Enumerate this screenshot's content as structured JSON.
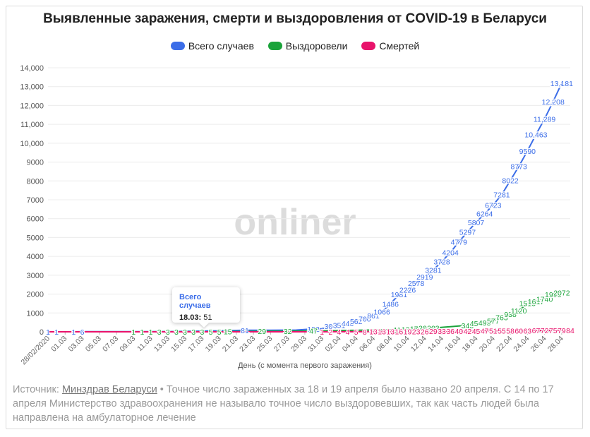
{
  "chart_data": {
    "type": "line",
    "title": "Выявленные заражения, смерти и выздоровления от COVID-19 в Беларуси",
    "xlabel": "День (с момента первого заражения)",
    "ylabel": "",
    "ylim": [
      0,
      14000
    ],
    "yticks": [
      0,
      1000,
      2000,
      3000,
      4000,
      5000,
      6000,
      7000,
      8000,
      9000,
      10000,
      11000,
      12000,
      13000,
      14000
    ],
    "ytick_labels": [
      "0",
      "1000",
      "2000",
      "3000",
      "4000",
      "5000",
      "6000",
      "7000",
      "8000",
      "9000",
      "10,000",
      "11,000",
      "12,000",
      "13,000",
      "14,000"
    ],
    "grid": true,
    "legend_position": "top",
    "xtick_labels": [
      "28/02/2020",
      "01.03",
      "03.03",
      "05.03",
      "07.03",
      "09.03",
      "11.03",
      "13.03",
      "15.03",
      "17.03",
      "19.03",
      "21.03",
      "23.03",
      "25.03",
      "27.03",
      "29.03",
      "31.03",
      "02.04",
      "04.04",
      "06.04",
      "08.04",
      "10.04",
      "12.04",
      "14.04",
      "16.04",
      "18.04",
      "20.04",
      "22.04",
      "24.04",
      "26.04",
      "28.04"
    ],
    "series": [
      {
        "name": "Всего случаев",
        "color": "#3b6de8",
        "points": [
          {
            "x": "28/02/2020",
            "y": 1,
            "label": "1"
          },
          {
            "x": "29.02",
            "y": 1,
            "label": "1"
          },
          {
            "x": "02.03",
            "y": 1,
            "label": "1"
          },
          {
            "x": "03.03",
            "y": 6,
            "label": "6"
          },
          {
            "x": "09.03",
            "y": 6
          },
          {
            "x": "13.03",
            "y": 9
          },
          {
            "x": "15.03",
            "y": 27
          },
          {
            "x": "17.03",
            "y": 36
          },
          {
            "x": "18.03",
            "y": 51
          },
          {
            "x": "19.03",
            "y": 51
          },
          {
            "x": "20.03",
            "y": 69
          },
          {
            "x": "21.03",
            "y": 76
          },
          {
            "x": "22.03",
            "y": 81,
            "label": "81"
          },
          {
            "x": "25.03",
            "y": 86
          },
          {
            "x": "28.03",
            "y": 94
          },
          {
            "x": "30.03",
            "y": 152,
            "label": "152"
          },
          {
            "x": "31.03",
            "y": 163
          },
          {
            "x": "01.04",
            "y": 304,
            "label": "304"
          },
          {
            "x": "02.04",
            "y": 351,
            "label": "351"
          },
          {
            "x": "03.04",
            "y": 440,
            "label": "440"
          },
          {
            "x": "04.04",
            "y": 562,
            "label": "562"
          },
          {
            "x": "05.04",
            "y": 700,
            "label": "700"
          },
          {
            "x": "06.04",
            "y": 861,
            "label": "861"
          },
          {
            "x": "07.04",
            "y": 1066,
            "label": "1066"
          },
          {
            "x": "08.04",
            "y": 1486,
            "label": "1486"
          },
          {
            "x": "09.04",
            "y": 1981,
            "label": "1981"
          },
          {
            "x": "10.04",
            "y": 2226,
            "label": "2226"
          },
          {
            "x": "11.04",
            "y": 2578,
            "label": "2578"
          },
          {
            "x": "12.04",
            "y": 2919,
            "label": "2919"
          },
          {
            "x": "13.04",
            "y": 3281,
            "label": "3281"
          },
          {
            "x": "14.04",
            "y": 3728,
            "label": "3728"
          },
          {
            "x": "15.04",
            "y": 4204,
            "label": "4204"
          },
          {
            "x": "16.04",
            "y": 4779,
            "label": "4779"
          },
          {
            "x": "17.04",
            "y": 5297,
            "label": "5297"
          },
          {
            "x": "18.04",
            "y": 5807,
            "label": "5807"
          },
          {
            "x": "19.04",
            "y": 6264,
            "label": "6264"
          },
          {
            "x": "20.04",
            "y": 6723,
            "label": "6723"
          },
          {
            "x": "21.04",
            "y": 7281,
            "label": "7281"
          },
          {
            "x": "22.04",
            "y": 8022,
            "label": "8022"
          },
          {
            "x": "23.04",
            "y": 8773,
            "label": "8773"
          },
          {
            "x": "24.04",
            "y": 9590,
            "label": "9590"
          },
          {
            "x": "25.04",
            "y": 10463,
            "label": "10,463"
          },
          {
            "x": "26.04",
            "y": 11289,
            "label": "11,289"
          },
          {
            "x": "27.04",
            "y": 12208,
            "label": "12,208"
          },
          {
            "x": "28.04",
            "y": 13181,
            "label": "13,181"
          }
        ]
      },
      {
        "name": "Выздоровели",
        "color": "#1aa33a",
        "points": [
          {
            "x": "28/02/2020",
            "y": 0
          },
          {
            "x": "09.03",
            "y": 1,
            "label": "1"
          },
          {
            "x": "10.03",
            "y": 1,
            "label": "1"
          },
          {
            "x": "11.03",
            "y": 1,
            "label": "1"
          },
          {
            "x": "12.03",
            "y": 3,
            "label": "3"
          },
          {
            "x": "13.03",
            "y": 3,
            "label": "3"
          },
          {
            "x": "14.03",
            "y": 3,
            "label": "3"
          },
          {
            "x": "15.03",
            "y": 3,
            "label": "3"
          },
          {
            "x": "16.03",
            "y": 3,
            "label": "3"
          },
          {
            "x": "17.03",
            "y": 3,
            "label": "3"
          },
          {
            "x": "18.03",
            "y": 5,
            "label": "5"
          },
          {
            "x": "19.03",
            "y": 5,
            "label": "5"
          },
          {
            "x": "20.03",
            "y": 15,
            "label": "15"
          },
          {
            "x": "24.03",
            "y": 29,
            "label": "29"
          },
          {
            "x": "27.03",
            "y": 32,
            "label": "32"
          },
          {
            "x": "30.03",
            "y": 47,
            "label": "47"
          },
          {
            "x": "09.04",
            "y": 111,
            "label": "111"
          },
          {
            "x": "10.04",
            "y": 138,
            "label": "138"
          },
          {
            "x": "11.04",
            "y": 170,
            "label": "170"
          },
          {
            "x": "12.04",
            "y": 203,
            "label": "203"
          },
          {
            "x": "13.04",
            "y": 203,
            "label": "203"
          },
          {
            "x": "17.04",
            "y": 345,
            "label": "345"
          },
          {
            "x": "18.04",
            "y": 454,
            "label": "454"
          },
          {
            "x": "19.04",
            "y": 495,
            "label": "495"
          },
          {
            "x": "20.04",
            "y": 577,
            "label": "577"
          },
          {
            "x": "21.04",
            "y": 763,
            "label": "763"
          },
          {
            "x": "22.04",
            "y": 938,
            "label": "938"
          },
          {
            "x": "23.04",
            "y": 1120,
            "label": "1120"
          },
          {
            "x": "24.04",
            "y": 1513,
            "label": "1513"
          },
          {
            "x": "25.04",
            "y": 1617,
            "label": "1617"
          },
          {
            "x": "26.04",
            "y": 1740,
            "label": "1740"
          },
          {
            "x": "27.04",
            "y": 1993,
            "label": "1993"
          },
          {
            "x": "28.04",
            "y": 2072,
            "label": "2072"
          }
        ]
      },
      {
        "name": "Смертей",
        "color": "#e8136b",
        "points": [
          {
            "x": "28/02/2020",
            "y": 0
          },
          {
            "x": "31.03",
            "y": 1,
            "label": "1"
          },
          {
            "x": "01.04",
            "y": 2,
            "label": "2"
          },
          {
            "x": "02.04",
            "y": 4,
            "label": "4"
          },
          {
            "x": "03.04",
            "y": 4,
            "label": "4"
          },
          {
            "x": "04.04",
            "y": 5,
            "label": "5"
          },
          {
            "x": "05.04",
            "y": 8,
            "label": "8"
          },
          {
            "x": "06.04",
            "y": 13,
            "label": "13"
          },
          {
            "x": "07.04",
            "y": 13,
            "label": "13"
          },
          {
            "x": "08.04",
            "y": 13,
            "label": "13"
          },
          {
            "x": "09.04",
            "y": 16,
            "label": "16"
          },
          {
            "x": "10.04",
            "y": 19,
            "label": "19"
          },
          {
            "x": "11.04",
            "y": 23,
            "label": "23"
          },
          {
            "x": "12.04",
            "y": 26,
            "label": "26"
          },
          {
            "x": "13.04",
            "y": 29,
            "label": "29"
          },
          {
            "x": "14.04",
            "y": 33,
            "label": "33"
          },
          {
            "x": "15.04",
            "y": 36,
            "label": "36"
          },
          {
            "x": "16.04",
            "y": 40,
            "label": "40"
          },
          {
            "x": "17.04",
            "y": 42,
            "label": "42"
          },
          {
            "x": "18.04",
            "y": 45,
            "label": "45"
          },
          {
            "x": "19.04",
            "y": 47,
            "label": "47"
          },
          {
            "x": "20.04",
            "y": 51,
            "label": "51"
          },
          {
            "x": "21.04",
            "y": 55,
            "label": "55"
          },
          {
            "x": "22.04",
            "y": 58,
            "label": "58"
          },
          {
            "x": "23.04",
            "y": 60,
            "label": "60"
          },
          {
            "x": "24.04",
            "y": 63,
            "label": "63"
          },
          {
            "x": "25.04",
            "y": 67,
            "label": "67"
          },
          {
            "x": "26.04",
            "y": 72,
            "label": "72"
          },
          {
            "x": "27.04",
            "y": 75,
            "label": "75"
          },
          {
            "x": "28.04",
            "y": 79,
            "label": "79"
          },
          {
            "x": "29.04",
            "y": 84,
            "label": "84"
          }
        ]
      }
    ]
  },
  "watermark": {
    "text": "onliner"
  },
  "tooltip": {
    "title": "Всего случаев",
    "date": "18.03:",
    "value": "51"
  },
  "footnote": {
    "prefix": "Источник: ",
    "link_text": "Минздрав Беларуси",
    "rest": " • Точное число зараженных за 18 и 19 апреля было названо 20 апреля. С 14 по 17 апреля Министерство здравоохранения не называло точное число выздоровевших, так как часть людей была направлена на амбулаторное лечение"
  }
}
